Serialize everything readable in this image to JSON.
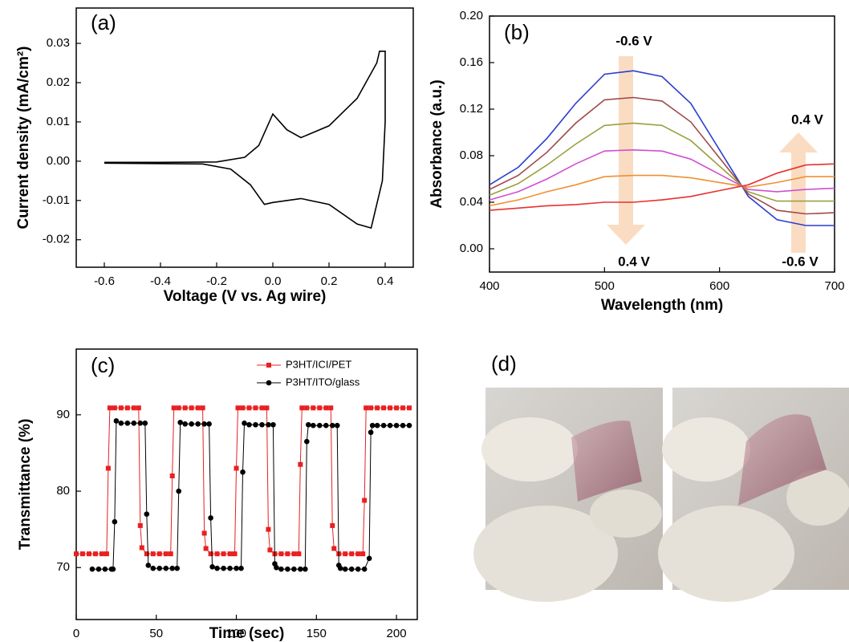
{
  "chart_data": [
    {
      "type": "line",
      "title": "(a)",
      "x_label": "Voltage (V vs. Ag wire)",
      "y_label": "Current density (mA/cm²)",
      "color": "#000000",
      "x": [
        -0.6,
        -0.4,
        -0.2,
        -0.1,
        -0.05,
        0,
        0.05,
        0.1,
        0.2,
        0.3,
        0.37,
        0.38,
        0.4,
        0.4,
        0.39,
        0.35,
        0.3,
        0.2,
        0.1,
        0,
        -0.03,
        -0.08,
        -0.15,
        -0.25,
        -0.6
      ],
      "values": [
        -0.0003,
        -0.0003,
        -0.0002,
        0.001,
        0.004,
        0.012,
        0.008,
        0.006,
        0.009,
        0.016,
        0.025,
        0.028,
        0.028,
        0.01,
        -0.005,
        -0.017,
        -0.016,
        -0.011,
        -0.0095,
        -0.0105,
        -0.011,
        -0.006,
        -0.002,
        -0.0007,
        -0.0005
      ],
      "xlim": [
        -0.7,
        0.5
      ],
      "xticks": [
        -0.6,
        -0.4,
        -0.2,
        {
          "value": 0,
          "label": "0.0"
        },
        0.2,
        0.4
      ],
      "ylim": [
        -0.027,
        0.039
      ],
      "yticks": [
        -0.02,
        -0.01,
        {
          "value": 0,
          "label": "0.00"
        },
        0.01,
        0.02,
        0.03
      ]
    },
    {
      "type": "line",
      "title": "(b)",
      "x_label": "Wavelength (nm)",
      "y_label": "Absorbance (a.u.)",
      "annotations": [
        "-0.6 V",
        "0.4 V",
        "0.4 V",
        "-0.6 V"
      ],
      "x": [
        400,
        425,
        450,
        475,
        500,
        525,
        550,
        575,
        600,
        625,
        650,
        675,
        700
      ],
      "series": [
        {
          "color": "#2b3fcf",
          "values": [
            0.055,
            0.07,
            0.095,
            0.125,
            0.15,
            0.153,
            0.148,
            0.125,
            0.085,
            0.045,
            0.025,
            0.02,
            0.02
          ]
        },
        {
          "color": "#a04848",
          "values": [
            0.051,
            0.063,
            0.083,
            0.108,
            0.128,
            0.13,
            0.127,
            0.109,
            0.078,
            0.047,
            0.033,
            0.03,
            0.031
          ]
        },
        {
          "color": "#9aa040",
          "values": [
            0.046,
            0.056,
            0.072,
            0.09,
            0.106,
            0.108,
            0.106,
            0.093,
            0.071,
            0.049,
            0.041,
            0.041,
            0.041
          ]
        },
        {
          "color": "#d050d0",
          "values": [
            0.042,
            0.049,
            0.06,
            0.073,
            0.084,
            0.085,
            0.084,
            0.077,
            0.064,
            0.051,
            0.049,
            0.051,
            0.052
          ]
        },
        {
          "color": "#f09030",
          "values": [
            0.037,
            0.042,
            0.049,
            0.055,
            0.062,
            0.063,
            0.063,
            0.061,
            0.057,
            0.053,
            0.057,
            0.062,
            0.062
          ]
        },
        {
          "color": "#e83030",
          "values": [
            0.033,
            0.035,
            0.037,
            0.038,
            0.04,
            0.04,
            0.042,
            0.045,
            0.05,
            0.055,
            0.065,
            0.072,
            0.073
          ]
        }
      ],
      "xlim": [
        400,
        700
      ],
      "xticks": [
        400,
        500,
        600,
        700
      ],
      "ylim": [
        -0.02,
        0.2
      ],
      "yticks": [
        {
          "value": 0,
          "label": "0.00"
        },
        0.04,
        0.08,
        0.12,
        0.16,
        {
          "value": 0.2,
          "label": "0.20"
        }
      ]
    },
    {
      "type": "line",
      "title": "(c)",
      "x_label": "Time (sec)",
      "y_label": "Transmittance (%)",
      "legend": "upper right",
      "series": [
        {
          "name": "P3HT/ICI/PET",
          "color": "#e82020",
          "marker": "square",
          "x": [
            0,
            4,
            8,
            12,
            16,
            19,
            20,
            21,
            24,
            28,
            32,
            36,
            39,
            40,
            41,
            44,
            48,
            52,
            56,
            59,
            60,
            61,
            64,
            68,
            72,
            76,
            79,
            80,
            81,
            84,
            88,
            92,
            96,
            99,
            100,
            101,
            104,
            108,
            112,
            116,
            119,
            120,
            121,
            124,
            128,
            132,
            136,
            139,
            140,
            141,
            144,
            148,
            152,
            156,
            159,
            160,
            161,
            164,
            168,
            172,
            176,
            179,
            180,
            181,
            184,
            188,
            192,
            196,
            200,
            204,
            208
          ],
          "values": [
            71.8,
            71.8,
            71.8,
            71.8,
            71.8,
            71.8,
            83,
            90.9,
            90.9,
            90.9,
            90.9,
            90.9,
            90.9,
            75.5,
            72.6,
            71.8,
            71.8,
            71.8,
            71.8,
            71.8,
            82,
            90.9,
            90.9,
            90.9,
            90.9,
            90.9,
            90.9,
            74.5,
            72.5,
            71.8,
            71.8,
            71.8,
            71.8,
            71.8,
            83,
            90.9,
            90.9,
            90.9,
            90.9,
            90.9,
            90.9,
            75,
            72.3,
            71.8,
            71.8,
            71.8,
            71.8,
            71.8,
            83.5,
            90.9,
            90.9,
            90.9,
            90.9,
            90.9,
            90.9,
            75.5,
            72.5,
            71.8,
            71.8,
            71.8,
            71.8,
            71.8,
            78.8,
            90.9,
            90.9,
            90.9,
            90.9,
            90.9,
            90.9,
            90.9,
            90.9
          ]
        },
        {
          "name": "P3HT/ITO/glass",
          "color": "#000000",
          "marker": "circle",
          "x": [
            10,
            14,
            18,
            22,
            23,
            24,
            25,
            28,
            32,
            36,
            40,
            43,
            44,
            45,
            48,
            52,
            56,
            60,
            63,
            64,
            65,
            68,
            72,
            76,
            80,
            83,
            84,
            85,
            88,
            92,
            96,
            100,
            103,
            104,
            105,
            108,
            112,
            116,
            120,
            123,
            124,
            125,
            128,
            132,
            136,
            140,
            143,
            144,
            145,
            148,
            152,
            156,
            160,
            163,
            164,
            165,
            168,
            172,
            176,
            180,
            183,
            184,
            185,
            188,
            192,
            196,
            200,
            204,
            208
          ],
          "values": [
            69.8,
            69.8,
            69.8,
            69.8,
            69.8,
            76,
            89.2,
            88.9,
            88.9,
            88.9,
            88.9,
            88.9,
            77,
            70.3,
            69.9,
            69.9,
            69.9,
            69.9,
            69.9,
            80,
            89,
            88.8,
            88.8,
            88.8,
            88.8,
            88.8,
            76.5,
            70.1,
            69.9,
            69.9,
            69.9,
            69.9,
            69.9,
            82.5,
            88.9,
            88.7,
            88.7,
            88.7,
            88.7,
            88.7,
            70.5,
            70,
            69.8,
            69.8,
            69.8,
            69.8,
            69.8,
            86.5,
            88.7,
            88.6,
            88.6,
            88.6,
            88.6,
            88.6,
            70.3,
            69.9,
            69.8,
            69.8,
            69.8,
            69.8,
            71.2,
            87.7,
            88.6,
            88.6,
            88.6,
            88.6,
            88.6,
            88.6,
            88.6
          ]
        }
      ],
      "xlim": [
        0,
        213
      ],
      "xticks": [
        0,
        50,
        100,
        150,
        200
      ],
      "ylim": [
        63.2,
        98.6
      ],
      "yticks": [
        70,
        80,
        90
      ]
    },
    {
      "type": "image",
      "title": "(d)"
    }
  ]
}
